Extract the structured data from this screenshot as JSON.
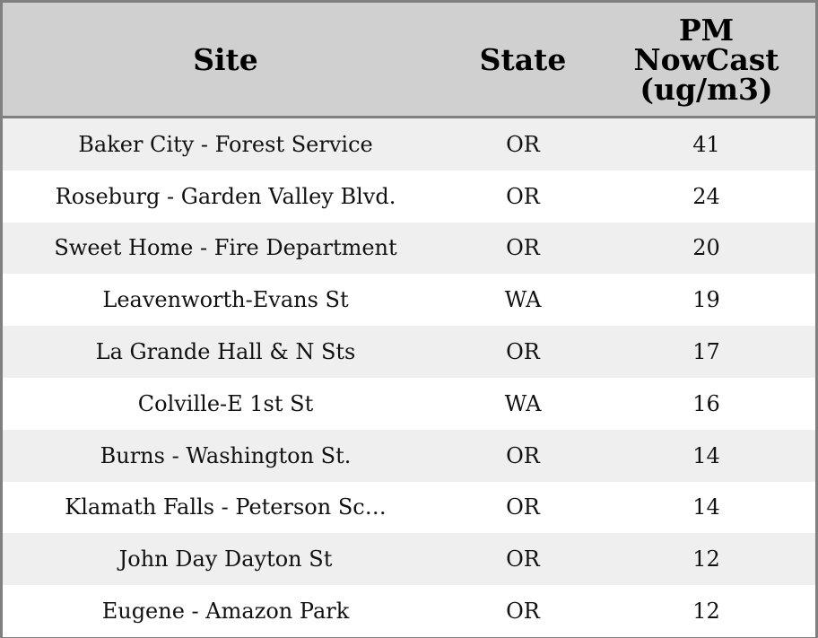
{
  "chart_data": {
    "type": "table",
    "columns": [
      "Site",
      "State",
      "PM\nNowCast\n(ug/m3)"
    ],
    "header_lines": [
      [
        "Site"
      ],
      [
        "State"
      ],
      [
        "PM",
        "NowCast",
        "(ug/m3)"
      ]
    ],
    "rows": [
      [
        "Baker City - Forest Service",
        "OR",
        "41"
      ],
      [
        "Roseburg - Garden Valley Blvd.",
        "OR",
        "24"
      ],
      [
        "Sweet Home - Fire Department",
        "OR",
        "20"
      ],
      [
        "Leavenworth-Evans St",
        "WA",
        "19"
      ],
      [
        "La Grande Hall & N Sts",
        "OR",
        "17"
      ],
      [
        "Colville-E 1st St",
        "WA",
        "16"
      ],
      [
        "Burns - Washington St.",
        "OR",
        "14"
      ],
      [
        "Klamath Falls - Peterson Sc…",
        "OR",
        "14"
      ],
      [
        "John Day Dayton St",
        "OR",
        "12"
      ],
      [
        "Eugene - Amazon Park",
        "OR",
        "12"
      ]
    ],
    "colors": {
      "header_bg": "#d0d0d0",
      "stripe_bg": "#efefef",
      "border": "#808080"
    }
  }
}
